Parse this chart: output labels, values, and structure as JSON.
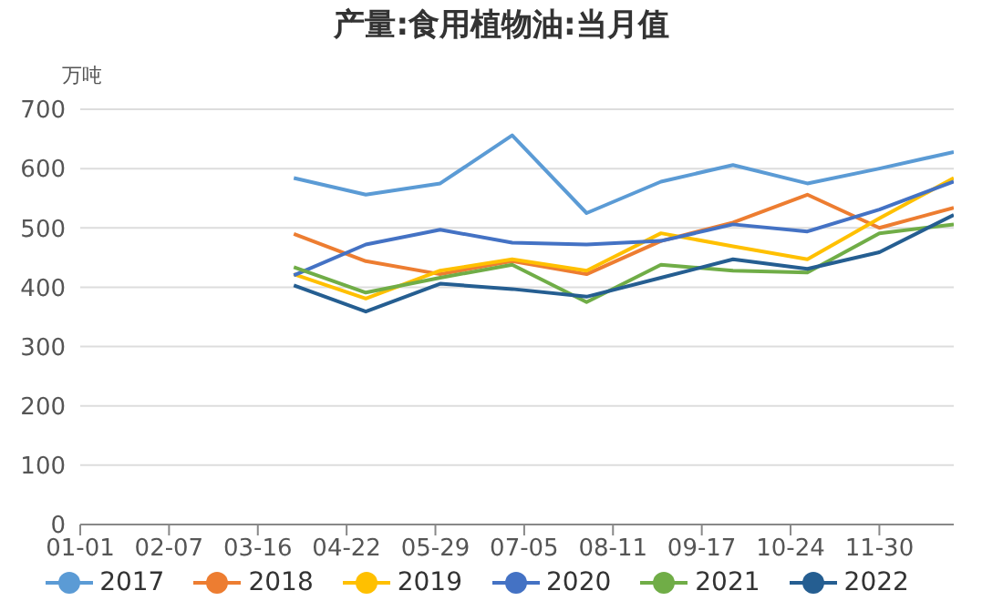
{
  "chart_data": {
    "type": "line",
    "title": "产量:食用植物油:当月值",
    "ylabel": "万吨",
    "x": [
      "--03-31",
      "--04-30",
      "--05-31",
      "--06-30",
      "--07-31",
      "--08-31",
      "--09-30",
      "--10-31",
      "--11-30",
      "--12-31"
    ],
    "series": [
      {
        "name": "2017",
        "color": "#5b9bd5",
        "values": [
          584,
          556,
          575,
          656,
          525,
          578,
          606,
          575,
          600,
          628
        ]
      },
      {
        "name": "2018",
        "color": "#ed7d31",
        "values": [
          490,
          444,
          422,
          444,
          422,
          478,
          509,
          556,
          500,
          534
        ]
      },
      {
        "name": "2019",
        "color": "#ffc000",
        "values": [
          422,
          381,
          428,
          447,
          428,
          491,
          469,
          447,
          516,
          584
        ]
      },
      {
        "name": "2020",
        "color": "#4472c4",
        "values": [
          420,
          472,
          497,
          475,
          472,
          478,
          506,
          494,
          531,
          578
        ]
      },
      {
        "name": "2021",
        "color": "#70ad47",
        "values": [
          434,
          391,
          416,
          438,
          375,
          438,
          428,
          425,
          491,
          506
        ]
      },
      {
        "name": "2022",
        "color": "#255e91",
        "values": [
          403,
          359,
          406,
          397,
          384,
          416,
          447,
          431,
          459,
          522
        ]
      }
    ],
    "xlim": [
      "--01-01",
      "--12-31"
    ],
    "xticks": [
      {
        "value": "--01-01",
        "label": "01-01"
      },
      {
        "value": "--02-07",
        "label": "02-07"
      },
      {
        "value": "--03-16",
        "label": "03-16"
      },
      {
        "value": "--04-22",
        "label": "04-22"
      },
      {
        "value": "--05-29",
        "label": "05-29"
      },
      {
        "value": "--07-05",
        "label": "07-05"
      },
      {
        "value": "--08-11",
        "label": "08-11"
      },
      {
        "value": "--09-17",
        "label": "09-17"
      },
      {
        "value": "--10-24",
        "label": "10-24"
      },
      {
        "value": "--11-30",
        "label": "11-30"
      }
    ],
    "ylim": [
      0,
      700
    ],
    "yticks": [
      0,
      100,
      200,
      300,
      400,
      500,
      600,
      700
    ],
    "grid": "y",
    "legend": "bottom",
    "marker": "none",
    "line_style": "solid"
  }
}
